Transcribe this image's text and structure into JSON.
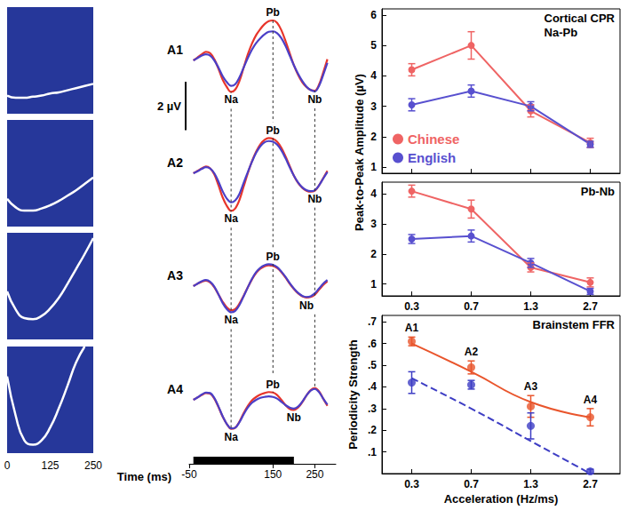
{
  "chart_data": [
    {
      "type": "line",
      "x": [
        0,
        25,
        50,
        75,
        100,
        125,
        150,
        175,
        200,
        225,
        250
      ],
      "xlim": [
        0,
        250
      ],
      "xticks": [
        0,
        125,
        250
      ],
      "ylim": [
        0,
        1
      ],
      "tick_labels": "x",
      "series": [
        {
          "color": "#ffffff",
          "values": [
            0.17,
            0.15,
            0.15,
            0.16,
            0.17,
            0.19,
            0.2,
            0.22,
            0.24,
            0.26,
            0.28
          ]
        },
        {
          "color": "#ffffff",
          "values": [
            0.26,
            0.18,
            0.15,
            0.15,
            0.17,
            0.2,
            0.24,
            0.29,
            0.34,
            0.4,
            0.46
          ]
        },
        {
          "color": "#ffffff",
          "values": [
            0.45,
            0.28,
            0.2,
            0.19,
            0.22,
            0.29,
            0.39,
            0.52,
            0.66,
            0.8,
            0.95
          ]
        },
        {
          "color": "#ffffff",
          "values": [
            0.72,
            0.35,
            0.12,
            0.08,
            0.12,
            0.24,
            0.42,
            0.63,
            0.85,
            1.0,
            null
          ]
        }
      ]
    },
    {
      "type": "line",
      "xlabel": "Time (ms)",
      "x": [
        -40,
        -30,
        -20,
        -10,
        0,
        10,
        20,
        30,
        40,
        50,
        60,
        70,
        80,
        90,
        100,
        110,
        120,
        130,
        140,
        150,
        160,
        170,
        180,
        190,
        200,
        210,
        220,
        230,
        240,
        250,
        260,
        270,
        280
      ],
      "xlim": [
        -50,
        300
      ],
      "xticks": [
        -50,
        150,
        250
      ],
      "ylim": [
        -2.2,
        2.2
      ],
      "tick_labels": "x",
      "scale_bar": {
        "value": 2,
        "label": "2 µV"
      },
      "stimulus_bar": [
        -40,
        200
      ],
      "panels": [
        {
          "label": "A1",
          "peaks": [
            {
              "label": "Na",
              "x": 50
            },
            {
              "label": "Pb",
              "x": 150
            },
            {
              "label": "Nb",
              "x": 250
            }
          ],
          "series": [
            {
              "name": "Chinese",
              "color": "#e8352b",
              "values": [
                0.0,
                0.12,
                0.25,
                0.35,
                0.3,
                0.05,
                -0.35,
                -0.8,
                -1.1,
                -1.3,
                -1.2,
                -0.85,
                -0.3,
                0.25,
                0.7,
                1.05,
                1.3,
                1.5,
                1.62,
                1.65,
                1.55,
                1.25,
                0.8,
                0.3,
                -0.2,
                -0.6,
                -0.9,
                -1.1,
                -1.22,
                -1.25,
                -1.0,
                -0.5,
                0.05
              ]
            },
            {
              "name": "English",
              "color": "#4b3fc7",
              "values": [
                0.0,
                0.1,
                0.2,
                0.25,
                0.2,
                0.0,
                -0.3,
                -0.65,
                -0.9,
                -1.05,
                -0.98,
                -0.7,
                -0.3,
                0.1,
                0.45,
                0.72,
                0.92,
                1.08,
                1.18,
                1.2,
                1.12,
                0.92,
                0.6,
                0.2,
                -0.2,
                -0.55,
                -0.85,
                -1.08,
                -1.22,
                -1.28,
                -1.05,
                -0.6,
                -0.1
              ]
            }
          ]
        },
        {
          "label": "A2",
          "peaks": [
            {
              "label": "Na",
              "x": 50
            },
            {
              "label": "Pb",
              "x": 150
            },
            {
              "label": "Nb",
              "x": 250
            }
          ],
          "series": [
            {
              "name": "Chinese",
              "color": "#e8352b",
              "values": [
                0.0,
                0.1,
                0.2,
                0.28,
                0.2,
                -0.05,
                -0.5,
                -1.0,
                -1.35,
                -1.55,
                -1.45,
                -1.1,
                -0.55,
                0.0,
                0.5,
                0.9,
                1.2,
                1.38,
                1.45,
                1.42,
                1.3,
                1.05,
                0.7,
                0.3,
                -0.1,
                -0.4,
                -0.6,
                -0.72,
                -0.76,
                -0.72,
                -0.5,
                -0.2,
                0.1
              ]
            },
            {
              "name": "English",
              "color": "#4b3fc7",
              "values": [
                0.0,
                0.08,
                0.18,
                0.25,
                0.2,
                0.0,
                -0.35,
                -0.75,
                -1.05,
                -1.2,
                -1.12,
                -0.85,
                -0.4,
                0.05,
                0.48,
                0.85,
                1.12,
                1.28,
                1.33,
                1.3,
                1.18,
                0.95,
                0.62,
                0.25,
                -0.1,
                -0.38,
                -0.58,
                -0.7,
                -0.74,
                -0.7,
                -0.5,
                -0.22,
                0.05
              ]
            }
          ]
        },
        {
          "label": "A3",
          "peaks": [
            {
              "label": "Na",
              "x": 50
            },
            {
              "label": "Pb",
              "x": 150
            },
            {
              "label": "Nb",
              "x": 230
            }
          ],
          "series": [
            {
              "name": "Chinese",
              "color": "#e8352b",
              "values": [
                0.0,
                0.1,
                0.18,
                0.22,
                0.15,
                -0.05,
                -0.35,
                -0.65,
                -0.88,
                -1.0,
                -0.95,
                -0.72,
                -0.4,
                -0.05,
                0.28,
                0.55,
                0.72,
                0.82,
                0.86,
                0.84,
                0.75,
                0.58,
                0.35,
                0.1,
                -0.12,
                -0.3,
                -0.42,
                -0.47,
                -0.45,
                -0.35,
                -0.15,
                0.05,
                0.2
              ]
            },
            {
              "name": "English",
              "color": "#4b3fc7",
              "values": [
                0.0,
                0.1,
                0.2,
                0.25,
                0.18,
                -0.02,
                -0.35,
                -0.7,
                -0.95,
                -1.08,
                -1.02,
                -0.78,
                -0.42,
                -0.05,
                0.3,
                0.58,
                0.76,
                0.86,
                0.9,
                0.88,
                0.78,
                0.6,
                0.38,
                0.12,
                -0.1,
                -0.28,
                -0.4,
                -0.45,
                -0.42,
                -0.3,
                -0.1,
                0.1,
                0.25
              ]
            }
          ]
        },
        {
          "label": "A4",
          "peaks": [
            {
              "label": "Na",
              "x": 50
            },
            {
              "label": "Pb",
              "x": 150
            },
            {
              "label": "Nb",
              "x": 200
            }
          ],
          "series": [
            {
              "name": "Chinese",
              "color": "#e8352b",
              "values": [
                0.0,
                0.1,
                0.2,
                0.28,
                0.25,
                0.05,
                -0.3,
                -0.7,
                -1.0,
                -1.2,
                -1.15,
                -0.9,
                -0.55,
                -0.25,
                -0.02,
                0.12,
                0.22,
                0.28,
                0.32,
                0.3,
                0.2,
                0.0,
                -0.22,
                -0.38,
                -0.42,
                -0.32,
                -0.1,
                0.18,
                0.4,
                0.48,
                0.35,
                0.05,
                -0.25
              ]
            },
            {
              "name": "English",
              "color": "#4b3fc7",
              "values": [
                0.0,
                0.1,
                0.22,
                0.3,
                0.28,
                0.08,
                -0.28,
                -0.68,
                -1.0,
                -1.18,
                -1.15,
                -0.92,
                -0.6,
                -0.32,
                -0.12,
                0.0,
                0.08,
                0.12,
                0.14,
                0.12,
                0.05,
                -0.08,
                -0.22,
                -0.32,
                -0.36,
                -0.28,
                -0.08,
                0.18,
                0.38,
                0.45,
                0.32,
                0.05,
                -0.2
              ]
            }
          ]
        }
      ]
    },
    {
      "type": "line",
      "title": "Cortical CPR",
      "subtitle": "Na-Pb",
      "ylabel": "Peak-to-Peak Amplitude (µV)",
      "categories": [
        "0.3",
        "0.7",
        "1.3",
        "2.7"
      ],
      "ylim": [
        0.8,
        6.2
      ],
      "yticks": [
        1,
        2,
        3,
        4,
        5,
        6
      ],
      "tick_labels": "y",
      "legend": "lower left",
      "marker": "circle",
      "series": [
        {
          "name": "Chinese",
          "color": "#ef6464",
          "values": [
            4.2,
            5.0,
            2.85,
            1.8
          ],
          "errors": [
            0.2,
            0.45,
            0.2,
            0.15
          ]
        },
        {
          "name": "English",
          "color": "#5850cf",
          "values": [
            3.05,
            3.5,
            3.0,
            1.75
          ],
          "errors": [
            0.2,
            0.2,
            0.15,
            0.1
          ]
        }
      ]
    },
    {
      "type": "line",
      "title": "Pb-Nb",
      "categories": [
        "0.3",
        "0.7",
        "1.3",
        "2.7"
      ],
      "ylim": [
        0.6,
        4.4
      ],
      "yticks": [
        1,
        2,
        3,
        4
      ],
      "marker": "circle",
      "series": [
        {
          "name": "Chinese",
          "color": "#ef6464",
          "values": [
            4.1,
            3.5,
            1.55,
            1.05
          ],
          "errors": [
            0.2,
            0.3,
            0.15,
            0.15
          ]
        },
        {
          "name": "English",
          "color": "#5850cf",
          "values": [
            2.5,
            2.6,
            1.7,
            0.75
          ],
          "errors": [
            0.15,
            0.2,
            0.15,
            0.1
          ]
        }
      ]
    },
    {
      "type": "scatter",
      "title": "Brainstem FFR",
      "xlabel": "Acceleration (Hz/ms)",
      "ylabel": "Periodicity Strength",
      "categories": [
        "0.3",
        "0.7",
        "1.3",
        "2.7"
      ],
      "ylim": [
        0,
        0.73
      ],
      "yticks": [
        {
          "value": 0.1,
          "label": ".1"
        },
        {
          "value": 0.2,
          "label": ".2"
        },
        {
          "value": 0.3,
          "label": ".3"
        },
        {
          "value": 0.4,
          "label": ".4"
        },
        {
          "value": 0.5,
          "label": ".5"
        },
        {
          "value": 0.6,
          "label": ".6"
        },
        {
          "value": 0.7,
          "label": ".7"
        }
      ],
      "point_labels": [
        "A1",
        "A2",
        "A3",
        "A4"
      ],
      "marker": "circle",
      "series": [
        {
          "name": "Chinese",
          "color": "#e9552c",
          "values": [
            0.61,
            0.49,
            0.31,
            0.26
          ],
          "errors": [
            0.02,
            0.03,
            0.05,
            0.04
          ],
          "fit": [
            0.6,
            0.47,
            0.33,
            0.26
          ],
          "line_style": "solid"
        },
        {
          "name": "English",
          "color": "#3d3dc4",
          "values": [
            0.42,
            0.41,
            0.22,
            0.01
          ],
          "errors": [
            0.05,
            0.02,
            0.06,
            0.01
          ],
          "fit": [
            0.44,
            0.3,
            0.15,
            0.0
          ],
          "line_style": "dashed"
        }
      ]
    }
  ]
}
